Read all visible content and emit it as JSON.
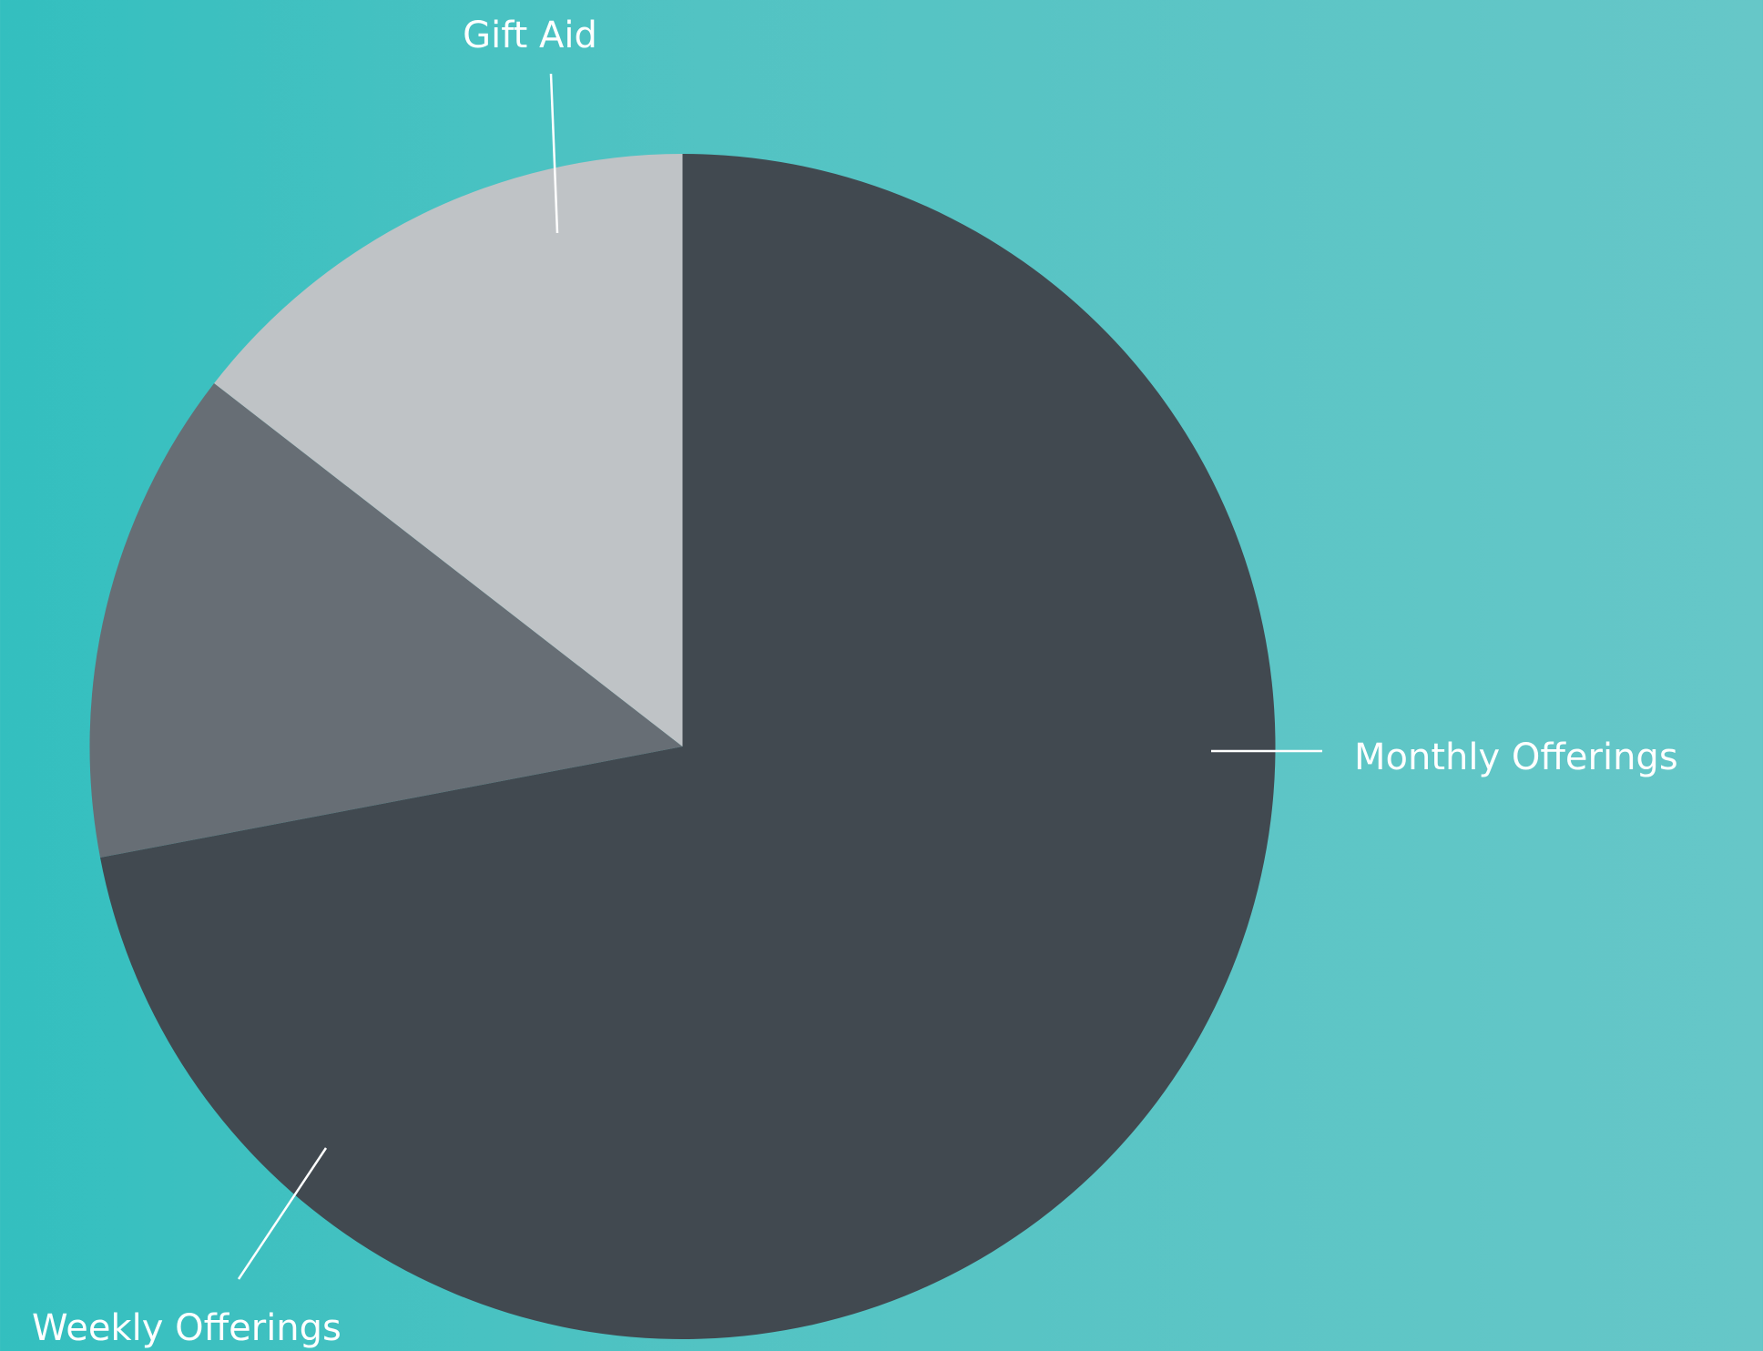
{
  "chart_data": {
    "type": "pie",
    "categories": [
      "Monthly Offerings",
      "Weekly Offerings",
      "Gift Aid"
    ],
    "values": [
      72,
      13.5,
      14.5
    ],
    "colors": [
      "#414950",
      "#676e75",
      "#bfc3c6"
    ]
  }
}
